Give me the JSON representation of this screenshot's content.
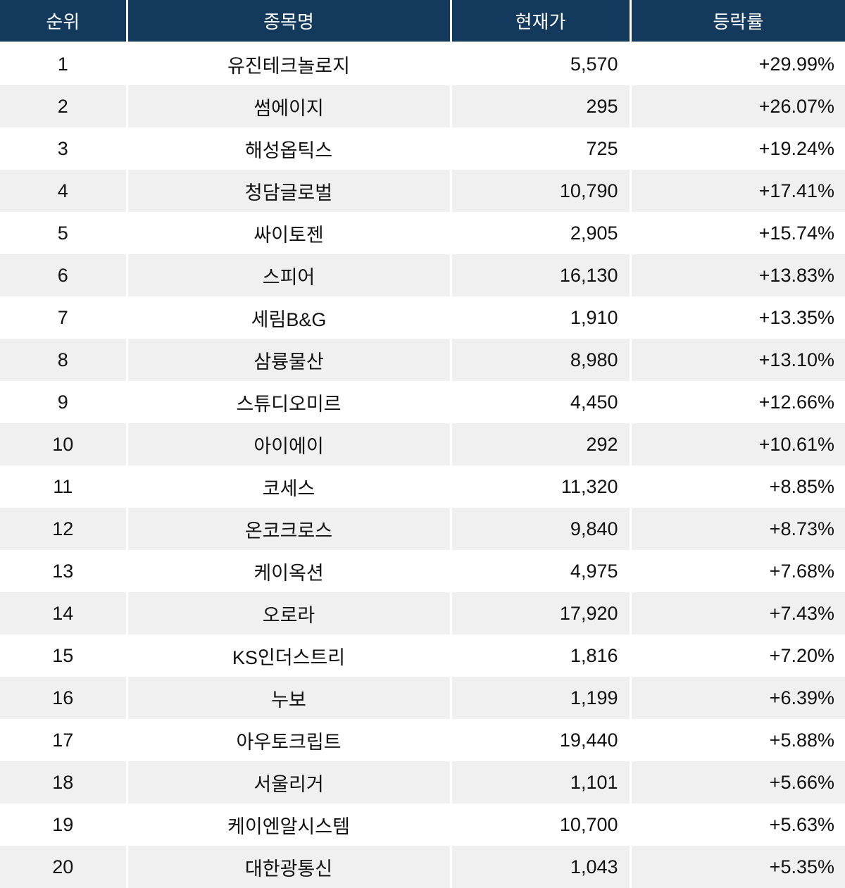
{
  "colors": {
    "header_bg": "#13395D",
    "header_text": "#FFFFFF",
    "row_bg": "#FFFFFF",
    "row_alt_bg": "#F0F0F0",
    "body_text": "#111111"
  },
  "table": {
    "columns": [
      {
        "key": "rank",
        "label": "순위"
      },
      {
        "key": "name",
        "label": "종목명"
      },
      {
        "key": "price",
        "label": "현재가"
      },
      {
        "key": "change",
        "label": "등락률"
      }
    ],
    "rows": [
      {
        "rank": "1",
        "name": "유진테크놀로지",
        "price": "5,570",
        "change": "+29.99%"
      },
      {
        "rank": "2",
        "name": "썸에이지",
        "price": "295",
        "change": "+26.07%"
      },
      {
        "rank": "3",
        "name": "해성옵틱스",
        "price": "725",
        "change": "+19.24%"
      },
      {
        "rank": "4",
        "name": "청담글로벌",
        "price": "10,790",
        "change": "+17.41%"
      },
      {
        "rank": "5",
        "name": "싸이토젠",
        "price": "2,905",
        "change": "+15.74%"
      },
      {
        "rank": "6",
        "name": "스피어",
        "price": "16,130",
        "change": "+13.83%"
      },
      {
        "rank": "7",
        "name": "세림B&G",
        "price": "1,910",
        "change": "+13.35%"
      },
      {
        "rank": "8",
        "name": "삼륭물산",
        "price": "8,980",
        "change": "+13.10%"
      },
      {
        "rank": "9",
        "name": "스튜디오미르",
        "price": "4,450",
        "change": "+12.66%"
      },
      {
        "rank": "10",
        "name": "아이에이",
        "price": "292",
        "change": "+10.61%"
      },
      {
        "rank": "11",
        "name": "코세스",
        "price": "11,320",
        "change": "+8.85%"
      },
      {
        "rank": "12",
        "name": "온코크로스",
        "price": "9,840",
        "change": "+8.73%"
      },
      {
        "rank": "13",
        "name": "케이옥션",
        "price": "4,975",
        "change": "+7.68%"
      },
      {
        "rank": "14",
        "name": "오로라",
        "price": "17,920",
        "change": "+7.43%"
      },
      {
        "rank": "15",
        "name": "KS인더스트리",
        "price": "1,816",
        "change": "+7.20%"
      },
      {
        "rank": "16",
        "name": "누보",
        "price": "1,199",
        "change": "+6.39%"
      },
      {
        "rank": "17",
        "name": "아우토크립트",
        "price": "19,440",
        "change": "+5.88%"
      },
      {
        "rank": "18",
        "name": "서울리거",
        "price": "1,101",
        "change": "+5.66%"
      },
      {
        "rank": "19",
        "name": "케이엔알시스템",
        "price": "10,700",
        "change": "+5.63%"
      },
      {
        "rank": "20",
        "name": "대한광통신",
        "price": "1,043",
        "change": "+5.35%"
      }
    ]
  }
}
